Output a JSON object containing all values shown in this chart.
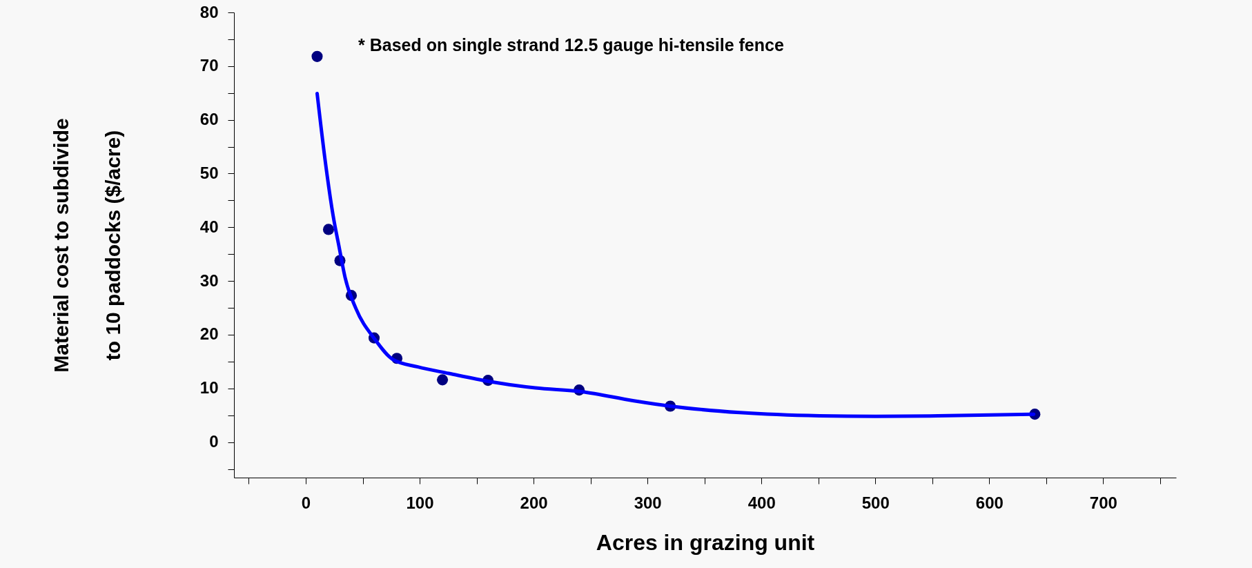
{
  "chart_data": {
    "type": "scatter",
    "xlabel": "Acres in grazing unit",
    "ylabel": "Material cost to subdivide\nto 10 paddocks ($/acre)",
    "annotations": [
      "* Based on single strand 12.5 gauge hi-tensile fence"
    ],
    "x": [
      10,
      20,
      30,
      40,
      60,
      80,
      120,
      160,
      240,
      320,
      640
    ],
    "series": [
      {
        "type": "scatter",
        "color": "#000080",
        "marker": "circle",
        "values": [
          71.8,
          39.6,
          33.8,
          27.3,
          19.4,
          15.6,
          11.6,
          11.5,
          9.7,
          6.7,
          5.2
        ]
      },
      {
        "type": "line",
        "color": "#0000ff",
        "marker": "none",
        "line_style": "solid",
        "x": [
          10,
          17,
          24,
          29.5,
          34.5,
          44,
          60.5,
          76.5,
          98.5,
          125.5,
          161,
          201.5,
          242,
          288,
          320,
          381,
          451,
          500,
          555,
          639
        ],
        "values": [
          64.9,
          52.5,
          42.2,
          36.1,
          30.7,
          24.9,
          19.2,
          15.4,
          14.0,
          12.8,
          11.3,
          10.1,
          9.4,
          7.7,
          6.7,
          5.5,
          4.9,
          4.8,
          4.9,
          5.2
        ]
      }
    ],
    "xlim": [
      -63,
      764
    ],
    "xticks": [
      {
        "value": -50,
        "label": null
      },
      0,
      {
        "value": 50,
        "label": null
      },
      100,
      {
        "value": 150,
        "label": null
      },
      200,
      {
        "value": 250,
        "label": null
      },
      300,
      {
        "value": 350,
        "label": null
      },
      400,
      {
        "value": 450,
        "label": null
      },
      500,
      {
        "value": 550,
        "label": null
      },
      600,
      {
        "value": 650,
        "label": null
      },
      700,
      {
        "value": 750,
        "label": null
      }
    ],
    "ylim": [
      -6.6,
      80
    ],
    "yticks": [
      {
        "value": -5,
        "label": null
      },
      0,
      {
        "value": 5,
        "label": null
      },
      10,
      {
        "value": 15,
        "label": null
      },
      20,
      {
        "value": 25,
        "label": null
      },
      30,
      {
        "value": 35,
        "label": null
      },
      40,
      {
        "value": 45,
        "label": null
      },
      50,
      {
        "value": 55,
        "label": null
      },
      60,
      {
        "value": 65,
        "label": null
      },
      70,
      {
        "value": 75,
        "label": null
      },
      80
    ],
    "grid": false
  }
}
